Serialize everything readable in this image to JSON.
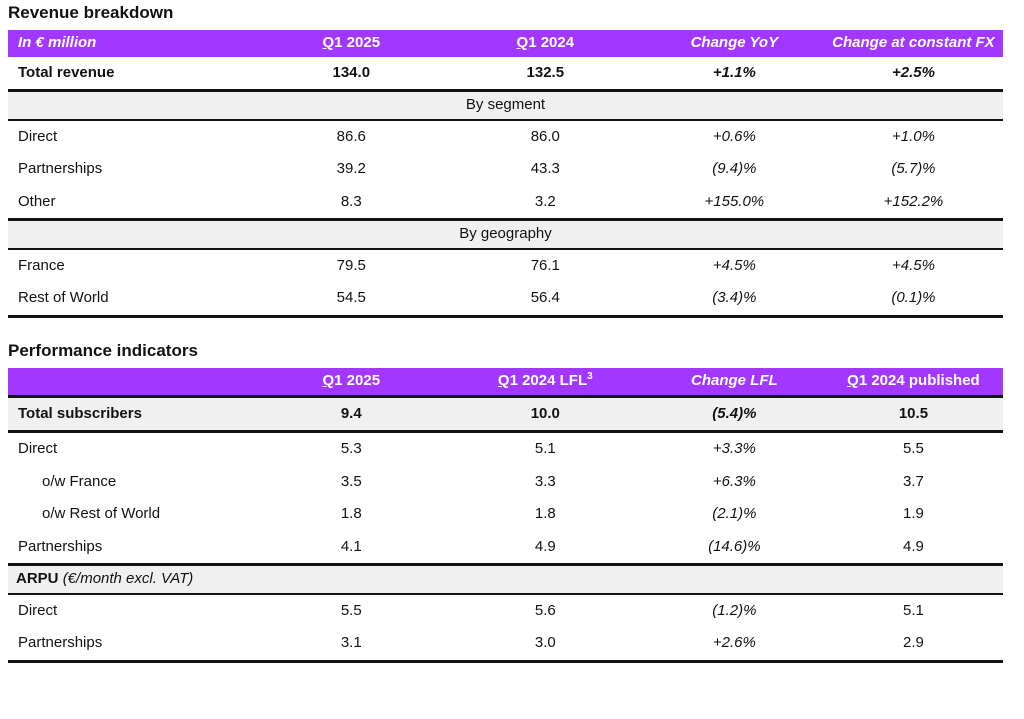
{
  "colors": {
    "header_purple": "#A238FF",
    "band_gray": "#F0F0F0",
    "rule_black": "#131313"
  },
  "revenue": {
    "title": "Revenue breakdown",
    "headers": [
      "In € million",
      "Q1 2025",
      "Q1 2024",
      "Change YoY",
      "Change at constant FX"
    ],
    "total": {
      "label": "Total revenue",
      "v": [
        "134.0",
        "132.5",
        "+1.1%",
        "+2.5%"
      ]
    },
    "seg_band": "By segment",
    "seg": [
      {
        "label": "Direct",
        "v": [
          "86.6",
          "86.0",
          "+0.6%",
          "+1.0%"
        ]
      },
      {
        "label": "Partnerships",
        "v": [
          "39.2",
          "43.3",
          "(9.4)%",
          "(5.7)%"
        ]
      },
      {
        "label": "Other",
        "v": [
          "8.3",
          "3.2",
          "+155.0%",
          "+152.2%"
        ]
      }
    ],
    "geo_band": "By geography",
    "geo": [
      {
        "label": "France",
        "v": [
          "79.5",
          "76.1",
          "+4.5%",
          "+4.5%"
        ]
      },
      {
        "label": "Rest of World",
        "v": [
          "54.5",
          "56.4",
          "(3.4)%",
          "(0.1)%"
        ]
      }
    ]
  },
  "performance": {
    "title": "Performance indicators",
    "headers": [
      "",
      "Q1 2025",
      "Q1 2024 LFL",
      "Change LFL",
      "Q1 2024 published"
    ],
    "lfl_sup": "3",
    "total": {
      "label": "Total subscribers",
      "v": [
        "9.4",
        "10.0",
        "(5.4)%",
        "10.5"
      ]
    },
    "subs": [
      {
        "label": "Direct",
        "v": [
          "5.3",
          "5.1",
          "+3.3%",
          "5.5"
        ]
      },
      {
        "label": "o/w France",
        "v": [
          "3.5",
          "3.3",
          "+6.3%",
          "3.7"
        ]
      },
      {
        "label": "o/w Rest of World",
        "v": [
          "1.8",
          "1.8",
          "(2.1)%",
          "1.9"
        ]
      },
      {
        "label": "Partnerships",
        "v": [
          "4.1",
          "4.9",
          "(14.6)%",
          "4.9"
        ]
      }
    ],
    "arpu_band": {
      "bold": "ARPU",
      "italic": "(€/month excl. VAT)"
    },
    "arpu": [
      {
        "label": "Direct",
        "v": [
          "5.5",
          "5.6",
          "(1.2)%",
          "5.1"
        ]
      },
      {
        "label": "Partnerships",
        "v": [
          "3.1",
          "3.0",
          "+2.6%",
          "2.9"
        ]
      }
    ]
  }
}
